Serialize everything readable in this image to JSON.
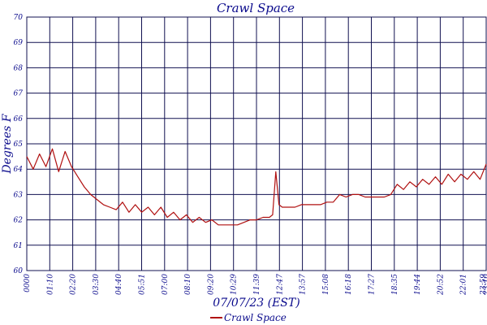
{
  "chart_data": {
    "type": "line",
    "title": "Crawl Space",
    "xlabel": "07/07/23 (EST)",
    "ylabel": "Degrees F",
    "ylim": [
      60,
      70
    ],
    "y_ticks": [
      60,
      61,
      62,
      63,
      64,
      65,
      66,
      67,
      68,
      69,
      70
    ],
    "x_ticks": [
      "0000",
      "01:10",
      "02:20",
      "03:30",
      "04:40",
      "05:51",
      "07:00",
      "08:10",
      "09:20",
      "10:29",
      "11:39",
      "12:47",
      "13:57",
      "15:08",
      "16:18",
      "17:27",
      "18:35",
      "19:44",
      "20:52",
      "22:01",
      "23:10",
      "23:59"
    ],
    "grid": true,
    "legend_position": "bottom",
    "colors": {
      "series": "#b01010",
      "grid": "#101050",
      "text": "#0a0a8c"
    },
    "series": [
      {
        "name": "Crawl Space",
        "x": [
          "00:00",
          "00:20",
          "00:40",
          "01:00",
          "01:20",
          "01:40",
          "02:00",
          "02:20",
          "02:40",
          "03:00",
          "03:20",
          "03:40",
          "04:00",
          "04:20",
          "04:40",
          "05:00",
          "05:20",
          "05:40",
          "06:00",
          "06:20",
          "06:40",
          "07:00",
          "07:20",
          "07:40",
          "08:00",
          "08:20",
          "08:40",
          "09:00",
          "09:20",
          "09:40",
          "10:00",
          "10:20",
          "10:40",
          "11:00",
          "11:20",
          "11:40",
          "12:00",
          "12:20",
          "12:40",
          "12:50",
          "13:00",
          "13:10",
          "13:20",
          "13:40",
          "14:00",
          "14:20",
          "14:40",
          "15:00",
          "15:20",
          "15:40",
          "16:00",
          "16:20",
          "16:40",
          "17:00",
          "17:20",
          "17:40",
          "18:00",
          "18:20",
          "18:40",
          "19:00",
          "19:20",
          "19:40",
          "20:00",
          "20:20",
          "20:40",
          "21:00",
          "21:20",
          "21:40",
          "22:00",
          "22:20",
          "22:40",
          "23:00",
          "23:20",
          "23:40",
          "23:59"
        ],
        "y": [
          64.5,
          64.0,
          64.6,
          64.1,
          64.8,
          63.9,
          64.7,
          64.1,
          63.7,
          63.3,
          63.0,
          62.8,
          62.6,
          62.5,
          62.4,
          62.7,
          62.3,
          62.6,
          62.3,
          62.5,
          62.2,
          62.5,
          62.1,
          62.3,
          62.0,
          62.2,
          61.9,
          62.1,
          61.9,
          62.0,
          61.8,
          61.8,
          61.8,
          61.8,
          61.9,
          62.0,
          62.0,
          62.1,
          62.1,
          62.2,
          63.9,
          62.6,
          62.5,
          62.5,
          62.5,
          62.6,
          62.6,
          62.6,
          62.6,
          62.7,
          62.7,
          63.0,
          62.9,
          63.0,
          63.0,
          62.9,
          62.9,
          62.9,
          62.9,
          63.0,
          63.4,
          63.2,
          63.5,
          63.3,
          63.6,
          63.4,
          63.7,
          63.4,
          63.8,
          63.5,
          63.8,
          63.6,
          63.9,
          63.6,
          64.2
        ]
      }
    ]
  }
}
